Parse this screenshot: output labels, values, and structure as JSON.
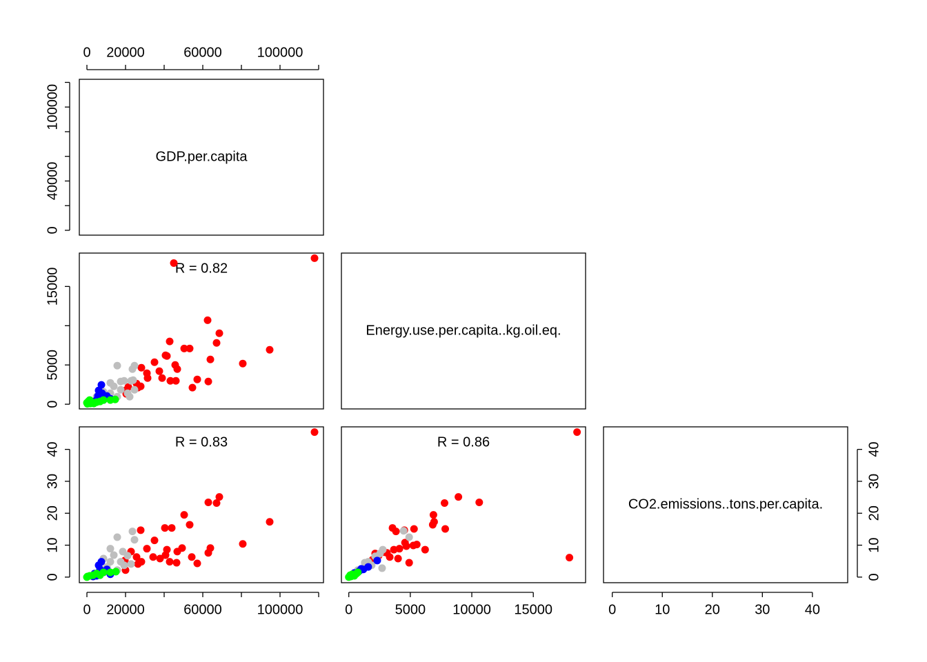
{
  "chart_data": {
    "type": "pairs",
    "variables": [
      {
        "label": "GDP.per.capita",
        "lim": [
          -3930,
          122500
        ],
        "ticks": [
          0,
          20000,
          40000,
          60000,
          80000,
          100000,
          120000
        ]
      },
      {
        "label": "Energy.use.per.capita..kg.oil.eq.",
        "lim": [
          -600,
          19250
        ],
        "ticks": [
          0,
          5000,
          10000,
          15000
        ]
      },
      {
        "label": "CO2.emissions..tons.per.capita.",
        "lim": [
          -1.75,
          47.05
        ],
        "ticks": [
          0,
          10,
          20,
          30,
          40
        ]
      }
    ],
    "panels": [
      {
        "annotation": "R = 0.82",
        "series": [
          {
            "color": "#ff0000",
            "x": [
              45000,
              117860,
              62500,
              68570,
              42860,
              50360,
              53210,
              67140,
              94640,
              63930,
              80710,
              35000,
              40710,
              41430,
              45710,
              46790,
              37500,
              31070,
              28210,
              38930,
              43210,
              46070,
              57140,
              62860,
              54640,
              27860,
              31430,
              25710,
              21430,
              20000,
              26430,
              20360
            ],
            "y": [
              17980,
              18600,
              10700,
              9040,
              8000,
              7100,
              7100,
              7810,
              6930,
              5700,
              5180,
              5350,
              6230,
              6140,
              5000,
              4470,
              4210,
              3950,
              4650,
              3330,
              2980,
              2980,
              3160,
              2890,
              2110,
              2280,
              3330,
              2630,
              2190,
              1750,
              2110,
              1320
            ]
          },
          {
            "color": "#bebebe",
            "x": [
              15710,
              24640,
              23570,
              12140,
              13930,
              17500,
              19290,
              22860,
              17500,
              12140,
              8570,
              21070,
              5000,
              24640,
              15710,
              10360,
              22140,
              23930
            ],
            "y": [
              4910,
              4910,
              4470,
              2720,
              2280,
              2890,
              2980,
              2980,
              1840,
              1400,
              1580,
              1400,
              960,
              1840,
              960,
              960,
              960,
              3070
            ]
          },
          {
            "color": "#0000ff",
            "x": [
              7500,
              6070,
              7860,
              6790,
              5000,
              3930,
              9290,
              12140,
              10360,
              5710,
              8570
            ],
            "y": [
              2460,
              1750,
              1400,
              700,
              530,
              350,
              880,
              700,
              1050,
              1050,
              530
            ]
          },
          {
            "color": "#00ff00",
            "x": [
              0,
              710,
              1430,
              2500,
              3570,
              5000,
              6790,
              8570,
              12140,
              14640,
              300,
              1790
            ],
            "y": [
              180,
              350,
              530,
              260,
              90,
              260,
              350,
              530,
              530,
              610,
              50,
              90
            ]
          }
        ]
      },
      {
        "annotation": "R = 0.83",
        "series": [
          {
            "color": "#ff0000",
            "x": [
              117860,
              68570,
              62860,
              67140,
              50360,
              94640,
              53210,
              80710,
              40360,
              43930,
              27860,
              35000,
              63930,
              62860,
              54290,
              57140,
              46790,
              49290,
              41430,
              40710,
              37860,
              31070,
              34290,
              28210,
              22860,
              25710,
              19640,
              20000,
              26430,
              42860,
              46430
            ],
            "y": [
              45.4,
              25.1,
              23.4,
              23.2,
              19.5,
              17.3,
              16.4,
              10.4,
              15.4,
              15.4,
              14.7,
              11.5,
              9.1,
              7.6,
              6.3,
              4.3,
              8.0,
              9.1,
              8.6,
              6.9,
              5.8,
              8.9,
              6.3,
              4.8,
              8.0,
              6.3,
              5.2,
              2.2,
              4.1,
              4.8,
              4.5
            ]
          },
          {
            "color": "#bebebe",
            "x": [
              15710,
              23570,
              24640,
              12140,
              18570,
              13930,
              21070,
              17500,
              12140,
              8570,
              22860,
              19290,
              10360,
              15710,
              6790
            ],
            "y": [
              12.5,
              14.3,
              11.7,
              8.9,
              8.0,
              6.9,
              6.7,
              4.8,
              4.8,
              5.8,
              4.1,
              3.7,
              3.2,
              2.2,
              2.6
            ]
          },
          {
            "color": "#0000ff",
            "x": [
              7500,
              6070,
              10360,
              3930,
              5000,
              8570,
              12140,
              6790,
              3210
            ],
            "y": [
              4.8,
              3.7,
              2.4,
              1.1,
              0.4,
              1.5,
              0.9,
              2.4,
              0.2
            ]
          },
          {
            "color": "#00ff00",
            "x": [
              0,
              1430,
              3210,
              5000,
              8570,
              12140,
              15000,
              300,
              6790
            ],
            "y": [
              0,
              0.4,
              0.6,
              1.1,
              1.5,
              1.5,
              1.7,
              0.2,
              0.6
            ]
          }
        ]
      },
      {
        "annotation": "R = 0.86",
        "series": [
          {
            "color": "#ff0000",
            "x": [
              18556,
              8911,
              10604,
              7783,
              6881,
              6937,
              6825,
              7840,
              5302,
              4512,
              3553,
              3835,
              6204,
              5245,
              4681,
              5527,
              4569,
              4117,
              3666,
              2425,
              2143,
              2877,
              3328,
              4005,
              4907,
              17936,
              1918,
              3102
            ],
            "y": [
              45.4,
              25.1,
              23.4,
              23.2,
              19.5,
              17.3,
              16.4,
              15.1,
              15.1,
              14.7,
              15.4,
              14.3,
              8.6,
              9.9,
              9.7,
              10.2,
              10.8,
              8.9,
              8.6,
              6.7,
              7.4,
              7.8,
              6.3,
              5.8,
              4.5,
              6.1,
              5.4,
              7.6
            ]
          },
          {
            "color": "#bebebe",
            "x": [
              4456,
              4907,
              2764,
              2538,
              2143,
              1579,
              1297,
              1861,
              2707,
              1184,
              733,
              2312
            ],
            "y": [
              14.5,
              12.5,
              8.6,
              7.4,
              6.5,
              4.8,
              4.5,
              3.7,
              2.8,
              2.6,
              2.2,
              5.4
            ]
          },
          {
            "color": "#0000ff",
            "x": [
              2312,
              1579,
              1015,
              846,
              451,
              226,
              733,
              1184
            ],
            "y": [
              5.2,
              3.2,
              2.6,
              1.9,
              1.3,
              0.4,
              1.5,
              2.4
            ]
          },
          {
            "color": "#00ff00",
            "x": [
              0,
              113,
              282,
              451,
              620,
              733,
              169
            ],
            "y": [
              0,
              0.6,
              0.9,
              0.4,
              1.1,
              1.5,
              0.2
            ]
          }
        ]
      }
    ]
  }
}
